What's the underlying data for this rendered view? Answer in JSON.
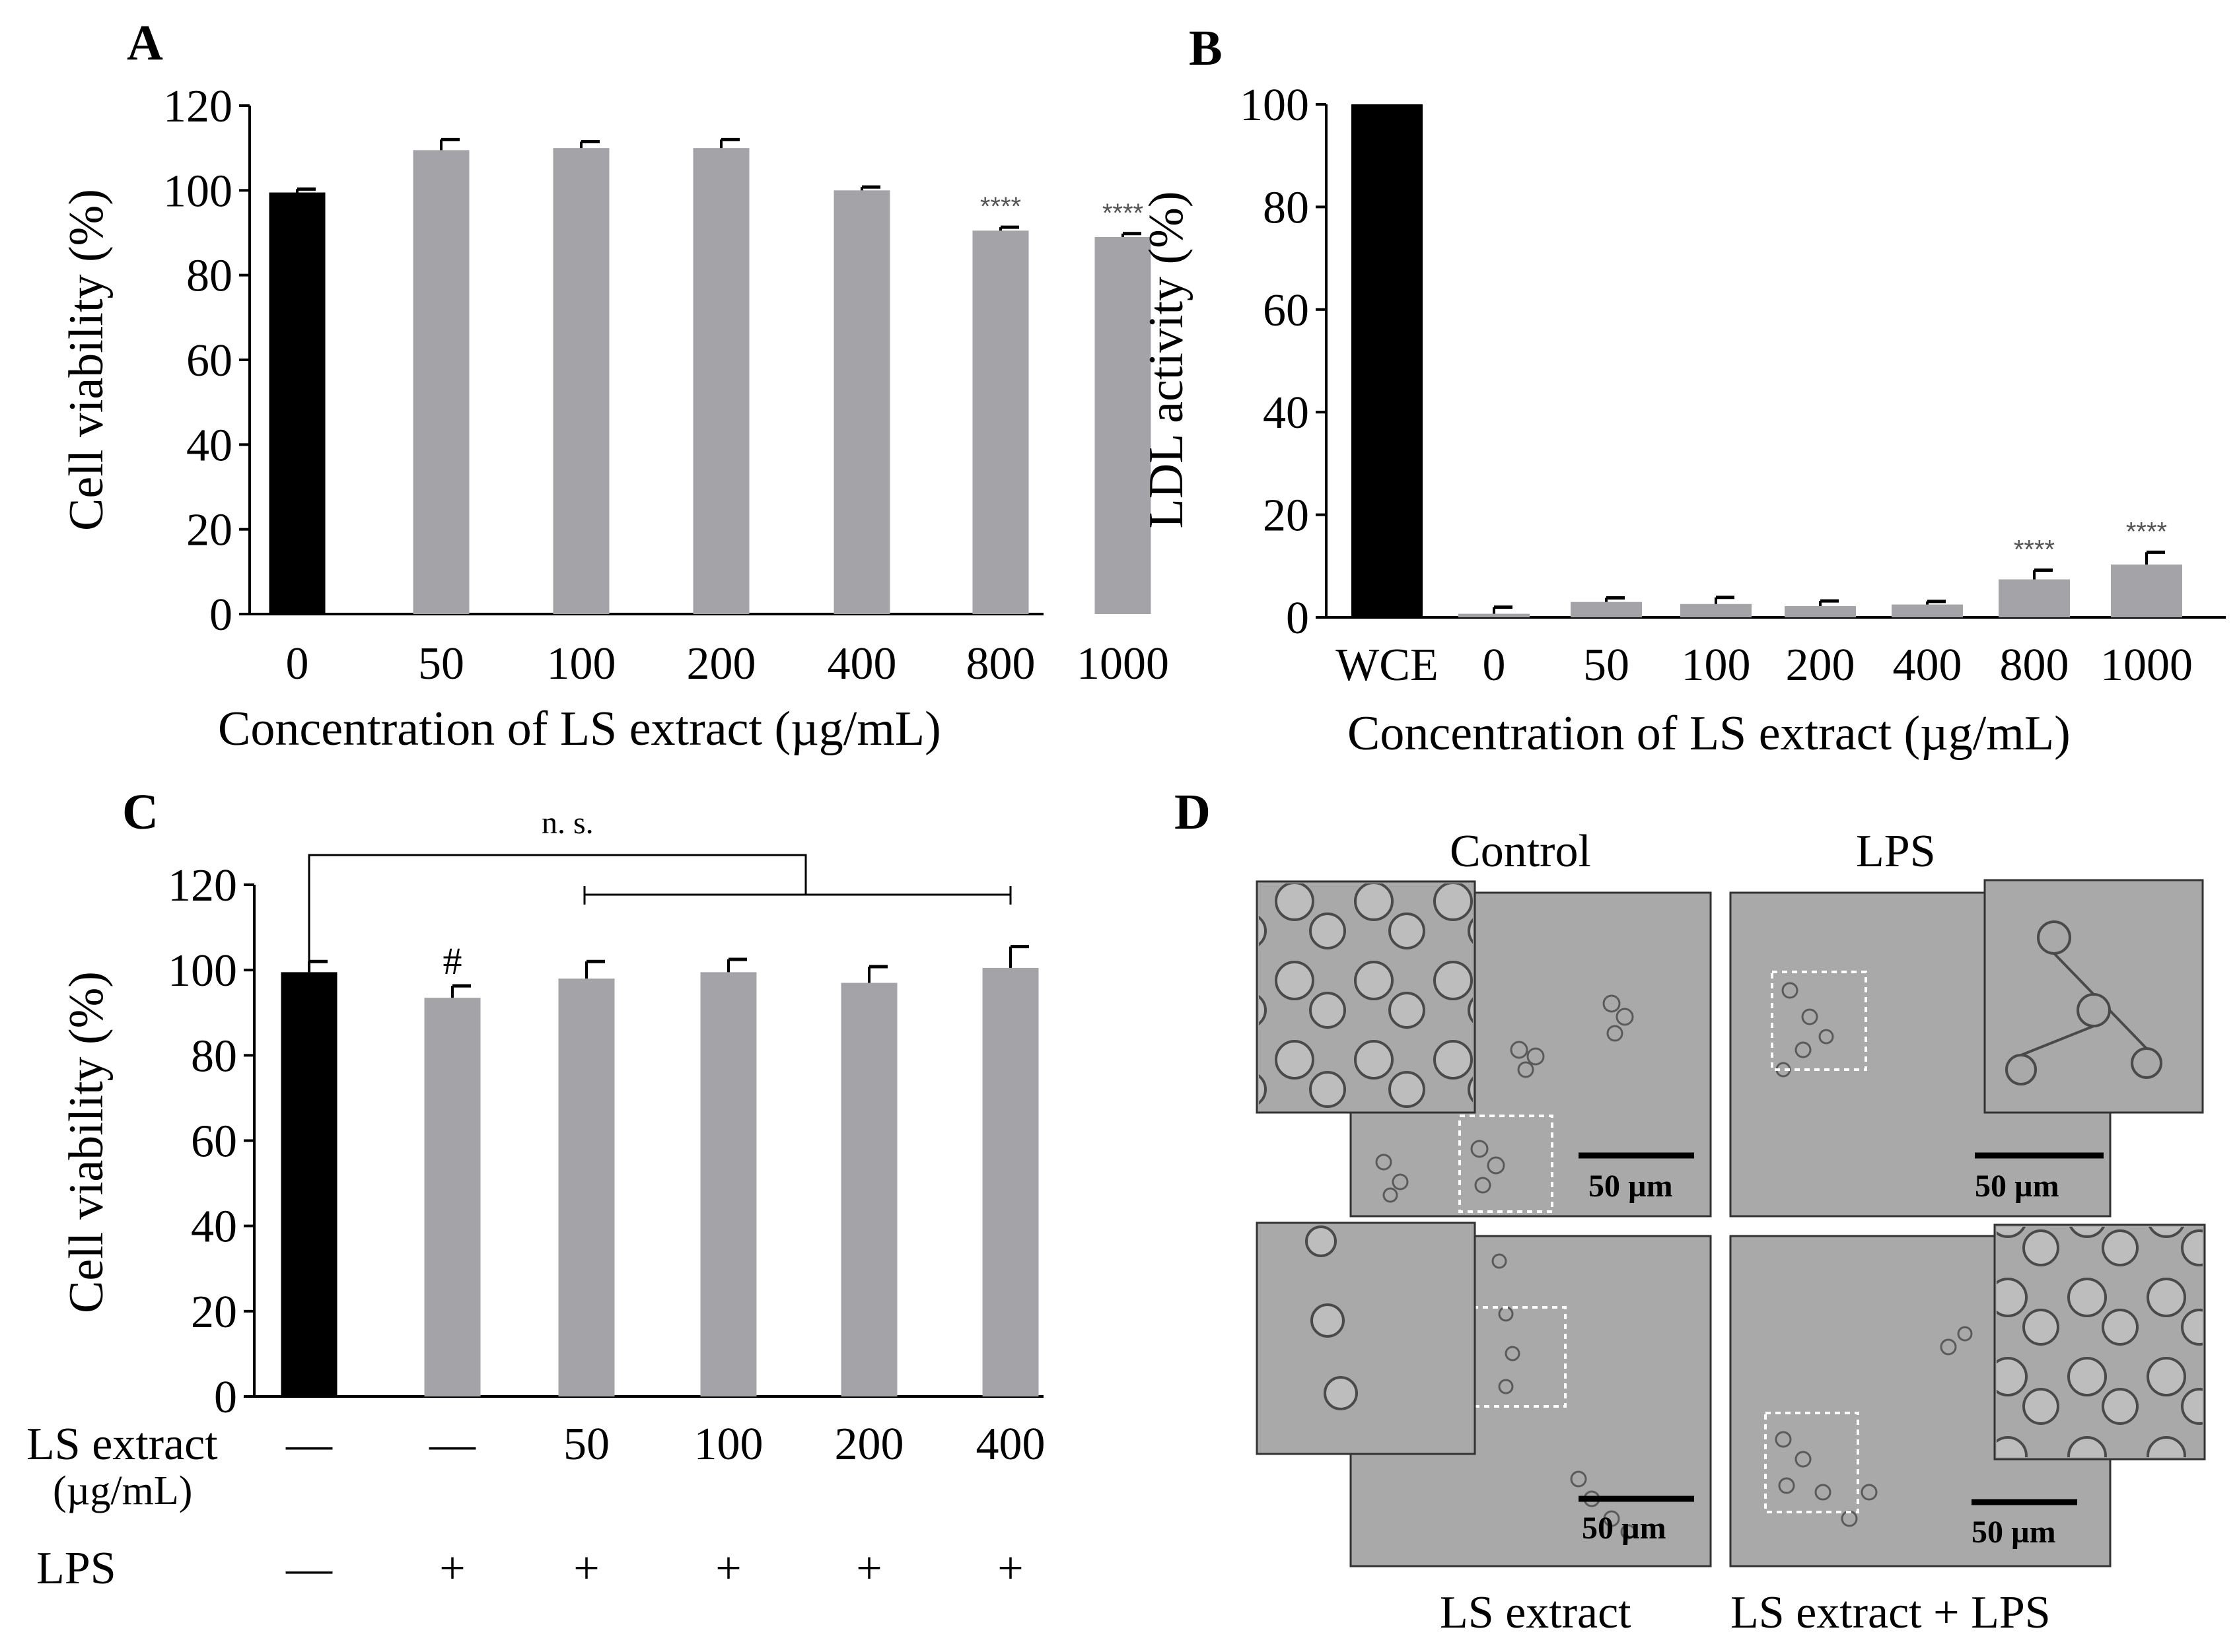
{
  "panel_letters": [
    "A",
    "B",
    "C",
    "D"
  ],
  "colors": {
    "black_bar": "#000000",
    "gray_bar": "#a4a3a8",
    "micro_bg": "#a9a9a9",
    "micro_cell": "#5a5a5a"
  },
  "chart_data": [
    {
      "id": "A",
      "type": "bar",
      "title": "",
      "xlabel": "Concentration of LS extract (µg/mL)",
      "ylabel": "Cell viability (%)",
      "ylim": [
        0,
        120
      ],
      "yticks": [
        "0",
        "20",
        "40",
        "60",
        "80",
        "100",
        "120"
      ],
      "categories": [
        "0",
        "50",
        "100",
        "200",
        "400",
        "800",
        "1000"
      ],
      "values": [
        99.5,
        109.5,
        110,
        110,
        100,
        90.5,
        89
      ],
      "errors": [
        0.8,
        2.5,
        1.5,
        2,
        0.8,
        0.8,
        0.8
      ],
      "bar_colors": [
        "black",
        "gray",
        "gray",
        "gray",
        "gray",
        "gray",
        "gray"
      ],
      "annotations": [
        "",
        "",
        "",
        "",
        "",
        "****",
        "****"
      ]
    },
    {
      "id": "B",
      "type": "bar",
      "title": "",
      "xlabel": "Concentration of LS extract (µg/mL)",
      "ylabel": "LDL activity (%)",
      "ylim": [
        0,
        100
      ],
      "yticks": [
        "0",
        "20",
        "40",
        "60",
        "80",
        "100"
      ],
      "categories": [
        "WCE",
        "0",
        "50",
        "100",
        "200",
        "400",
        "800",
        "1000"
      ],
      "values": [
        100,
        0.7,
        3,
        2.6,
        2.2,
        2.5,
        7.4,
        10.3
      ],
      "errors": [
        0,
        1.3,
        0.8,
        1.3,
        1,
        0.6,
        1.8,
        2.4
      ],
      "bar_colors": [
        "black",
        "gray",
        "gray",
        "gray",
        "gray",
        "gray",
        "gray",
        "gray"
      ],
      "annotations": [
        "",
        "",
        "",
        "",
        "",
        "",
        "****",
        "****"
      ]
    },
    {
      "id": "C",
      "type": "bar",
      "title": "",
      "xlabel": "",
      "ylabel": "Cell viability (%)",
      "ylim": [
        0,
        120
      ],
      "yticks": [
        "0",
        "20",
        "40",
        "60",
        "80",
        "100",
        "120"
      ],
      "categories": [
        "—",
        "—",
        "50",
        "100",
        "200",
        "400"
      ],
      "values": [
        99.5,
        93.5,
        98,
        99.5,
        97,
        100.5
      ],
      "errors": [
        2.5,
        2.8,
        4,
        3,
        3.8,
        5
      ],
      "bar_colors": [
        "black",
        "gray",
        "gray",
        "gray",
        "gray",
        "gray"
      ],
      "annotations": [
        "",
        "#",
        "",
        "",
        "",
        ""
      ],
      "row_labels": {
        "ls_extract": "LS extract",
        "ls_unit": "(µg/mL)",
        "lps": "LPS"
      },
      "lps_row": [
        "—",
        "+",
        "+",
        "+",
        "+",
        "+"
      ],
      "significance": "n. s."
    }
  ],
  "panel_d": {
    "top_labels": [
      "Control",
      "LPS"
    ],
    "bottom_labels": [
      "LS  extract",
      "LS extract + LPS"
    ],
    "scale_bar": "50 µm"
  }
}
